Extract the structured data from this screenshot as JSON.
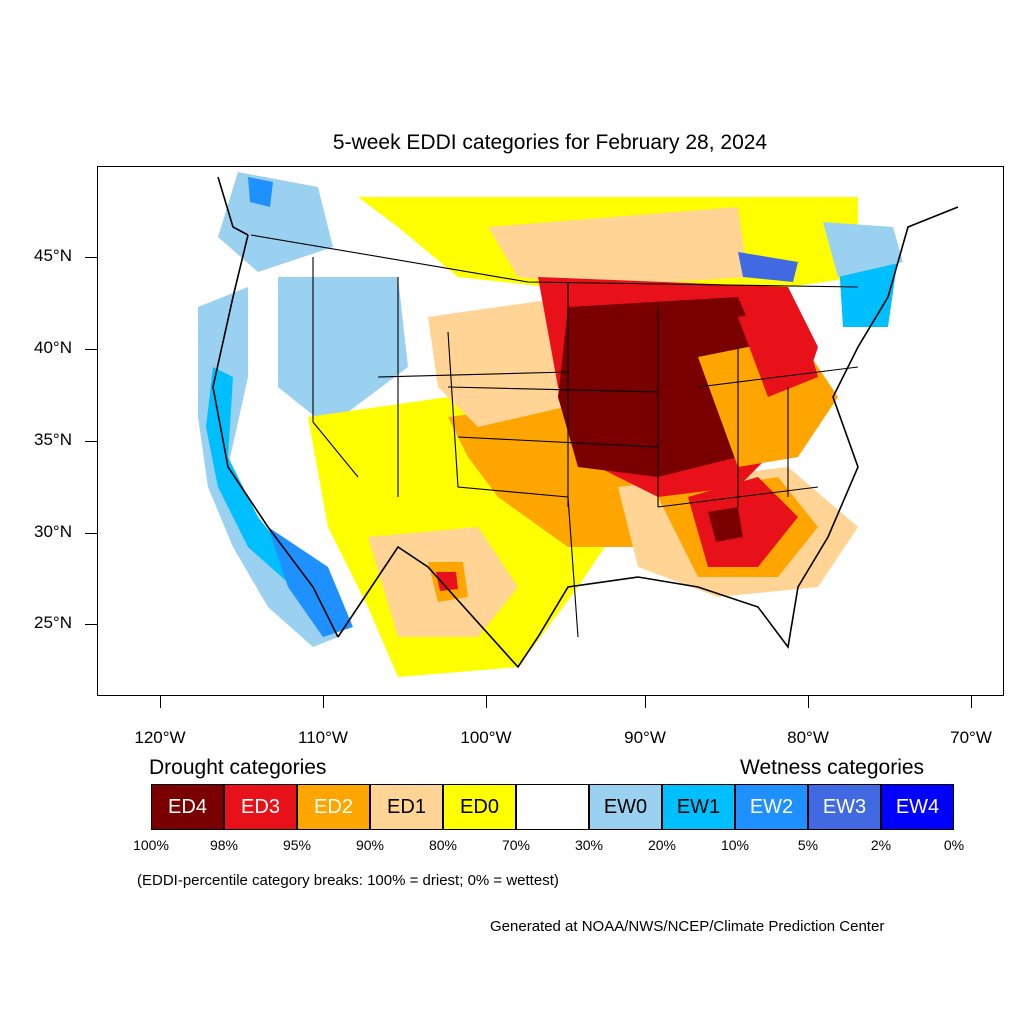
{
  "title": "5-week EDDI categories for February 28, 2024",
  "map": {
    "y_axis_labels": [
      "45°N",
      "40°N",
      "35°N",
      "30°N",
      "25°N"
    ],
    "x_axis_labels": [
      "120°W",
      "110°W",
      "100°W",
      "90°W",
      "80°W",
      "70°W"
    ],
    "region": "Contiguous United States",
    "regions": [
      {
        "area": "Upper Midwest / Great Lakes / Ohio & Mid-Mississippi Valley",
        "category": "ED4"
      },
      {
        "area": "Lower Ohio Valley / Tennessee / Alabama",
        "category": "ED3"
      },
      {
        "area": "Central & Southern Plains",
        "category": "ED2"
      },
      {
        "area": "Southern High Plains / West Texas",
        "category": "ED1"
      },
      {
        "area": "Northern Plains / Southwest / Texas",
        "category": "ED0"
      },
      {
        "area": "Pacific Coast / California",
        "category": "EW1"
      },
      {
        "area": "Northern Rockies / Great Basin",
        "category": "EW0"
      },
      {
        "area": "Northern New England",
        "category": "EW1"
      }
    ]
  },
  "legend": {
    "drought_title": "Drought categories",
    "wetness_title": "Wetness categories",
    "categories": [
      {
        "label": "ED4",
        "color": "#7a0000",
        "text_color": "#ffffff"
      },
      {
        "label": "ED3",
        "color": "#e8111a",
        "text_color": "#ffffff"
      },
      {
        "label": "ED2",
        "color": "#ffa500",
        "text_color": "#ffffff"
      },
      {
        "label": "ED1",
        "color": "#ffd494",
        "text_color": "#000000"
      },
      {
        "label": "ED0",
        "color": "#ffff00",
        "text_color": "#000000"
      },
      {
        "label": "",
        "color": "#ffffff",
        "text_color": "#000000"
      },
      {
        "label": "EW0",
        "color": "#9ad0f0",
        "text_color": "#000000"
      },
      {
        "label": "EW1",
        "color": "#00bfff",
        "text_color": "#000000"
      },
      {
        "label": "EW2",
        "color": "#1e90ff",
        "text_color": "#ffffff"
      },
      {
        "label": "EW3",
        "color": "#4169e1",
        "text_color": "#ffffff"
      },
      {
        "label": "EW4",
        "color": "#0000ff",
        "text_color": "#ffffff"
      }
    ],
    "breaks": [
      "100%",
      "98%",
      "95%",
      "90%",
      "80%",
      "70%",
      "30%",
      "20%",
      "10%",
      "5%",
      "2%",
      "0%"
    ]
  },
  "note": "(EDDI-percentile category breaks: 100% = driest; 0% = wettest)",
  "credit": "Generated at NOAA/NWS/NCEP/Climate Prediction Center"
}
